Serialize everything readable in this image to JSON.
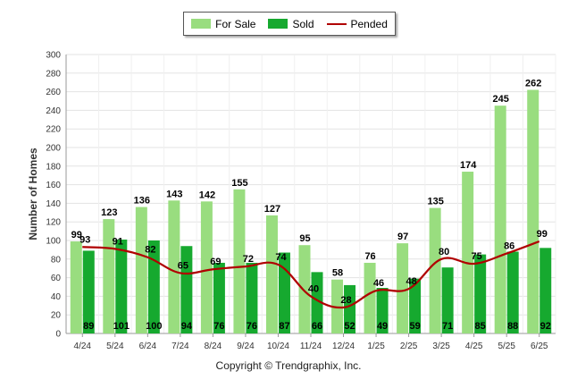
{
  "chart_data": {
    "type": "bar",
    "ylabel": "Number of Homes",
    "ylim": [
      0,
      300
    ],
    "yticks": [
      0,
      20,
      40,
      60,
      80,
      100,
      120,
      140,
      160,
      180,
      200,
      220,
      240,
      260,
      280,
      300
    ],
    "grid": true,
    "legend": "top-center",
    "categories": [
      "4/24",
      "5/24",
      "6/24",
      "7/24",
      "8/24",
      "9/24",
      "10/24",
      "11/24",
      "12/24",
      "1/25",
      "2/25",
      "3/25",
      "4/25",
      "5/25",
      "6/25"
    ],
    "series": [
      {
        "name": "For Sale",
        "kind": "bar",
        "color": "#99dd7f",
        "values": [
          99,
          123,
          136,
          143,
          142,
          155,
          127,
          95,
          58,
          76,
          97,
          135,
          174,
          245,
          262
        ]
      },
      {
        "name": "Sold",
        "kind": "bar",
        "color": "#16a92f",
        "values": [
          89,
          101,
          100,
          94,
          76,
          76,
          87,
          66,
          52,
          49,
          59,
          71,
          85,
          88,
          92
        ]
      },
      {
        "name": "Pended",
        "kind": "line",
        "color": "#b00000",
        "values": [
          93,
          91,
          82,
          65,
          69,
          72,
          74,
          40,
          28,
          46,
          48,
          80,
          75,
          86,
          99
        ]
      }
    ]
  },
  "footer": {
    "copyright": "Copyright © Trendgraphix, Inc."
  }
}
